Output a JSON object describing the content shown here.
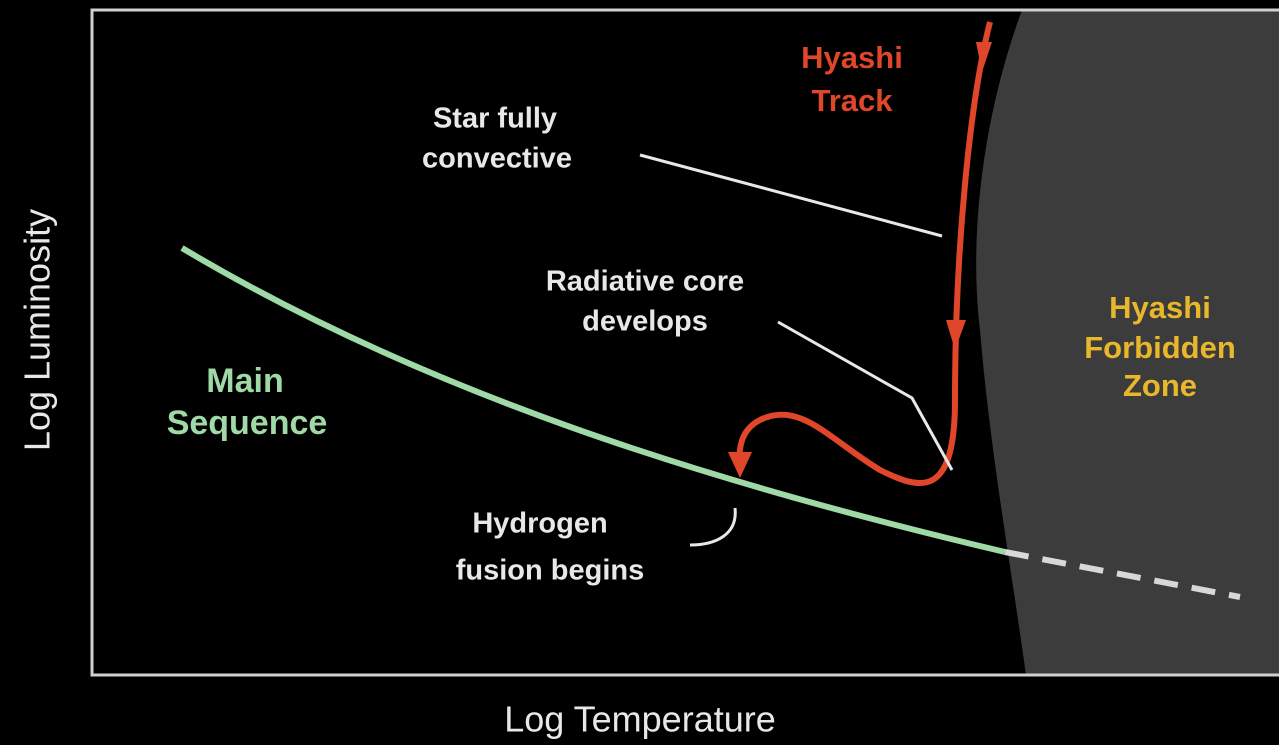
{
  "axes": {
    "x_label": "Log Temperature",
    "y_label": "Log Luminosity"
  },
  "labels": {
    "hyashi_track": [
      "Hyashi",
      "Track"
    ],
    "star_fully_convective": [
      "Star fully",
      "convective"
    ],
    "radiative_core": [
      "Radiative core",
      "develops"
    ],
    "main_sequence": [
      "Main",
      "Sequence"
    ],
    "hydrogen_fusion": [
      "Hydrogen",
      "fusion begins"
    ],
    "forbidden_zone": [
      "Hyashi",
      "Forbidden",
      "Zone"
    ]
  }
}
